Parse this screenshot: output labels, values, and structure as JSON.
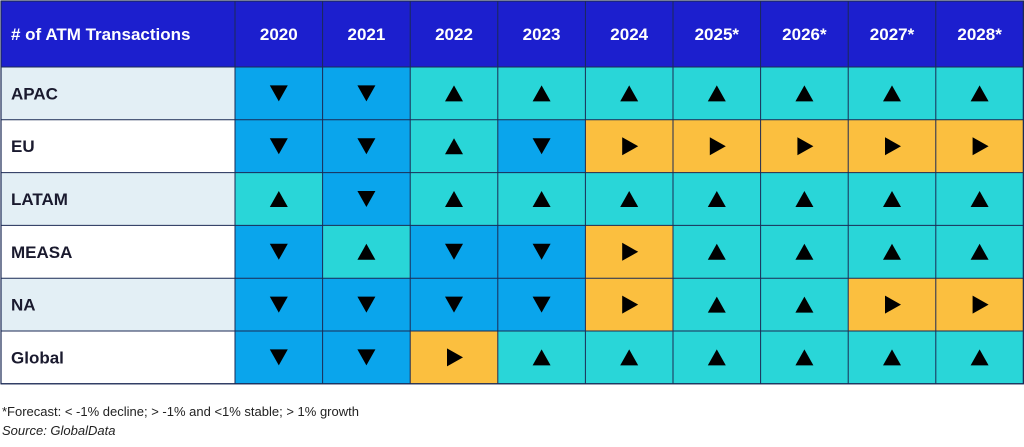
{
  "chart_data": {
    "type": "heatmap",
    "corner_label": "# of ATM Transactions",
    "columns": [
      "2020",
      "2021",
      "2022",
      "2023",
      "2024",
      "2025*",
      "2026*",
      "2027*",
      "2028*"
    ],
    "rows": [
      {
        "label": "APAC",
        "values": [
          "decline",
          "decline",
          "growth",
          "growth",
          "growth",
          "growth",
          "growth",
          "growth",
          "growth"
        ]
      },
      {
        "label": "EU",
        "values": [
          "decline",
          "decline",
          "growth",
          "decline",
          "stable",
          "stable",
          "stable",
          "stable",
          "stable"
        ]
      },
      {
        "label": "LATAM",
        "values": [
          "growth",
          "decline",
          "growth",
          "growth",
          "growth",
          "growth",
          "growth",
          "growth",
          "growth"
        ]
      },
      {
        "label": "MEASA",
        "values": [
          "decline",
          "growth",
          "decline",
          "decline",
          "stable",
          "growth",
          "growth",
          "growth",
          "growth"
        ]
      },
      {
        "label": "NA",
        "values": [
          "decline",
          "decline",
          "decline",
          "decline",
          "stable",
          "growth",
          "growth",
          "stable",
          "stable"
        ]
      },
      {
        "label": "Global",
        "values": [
          "decline",
          "decline",
          "stable",
          "growth",
          "growth",
          "growth",
          "growth",
          "growth",
          "growth"
        ]
      }
    ],
    "legend": {
      "decline": {
        "symbol": "down-triangle",
        "color": "#0aa5ec"
      },
      "stable": {
        "symbol": "right-triangle",
        "color": "#fbbf3f"
      },
      "growth": {
        "symbol": "up-triangle",
        "color": "#29d6d8"
      }
    },
    "colors": {
      "header_bg": "#1c1fce",
      "header_text": "#ffffff",
      "row_label_bg_alt": "#e3eff5",
      "row_label_bg": "#ffffff",
      "grid_line": "#1b2a55",
      "symbol": "#000000"
    }
  },
  "footnote": "*Forecast: < -1% decline; > -1% and <1% stable; > 1% growth",
  "source": "Source: GlobalData"
}
